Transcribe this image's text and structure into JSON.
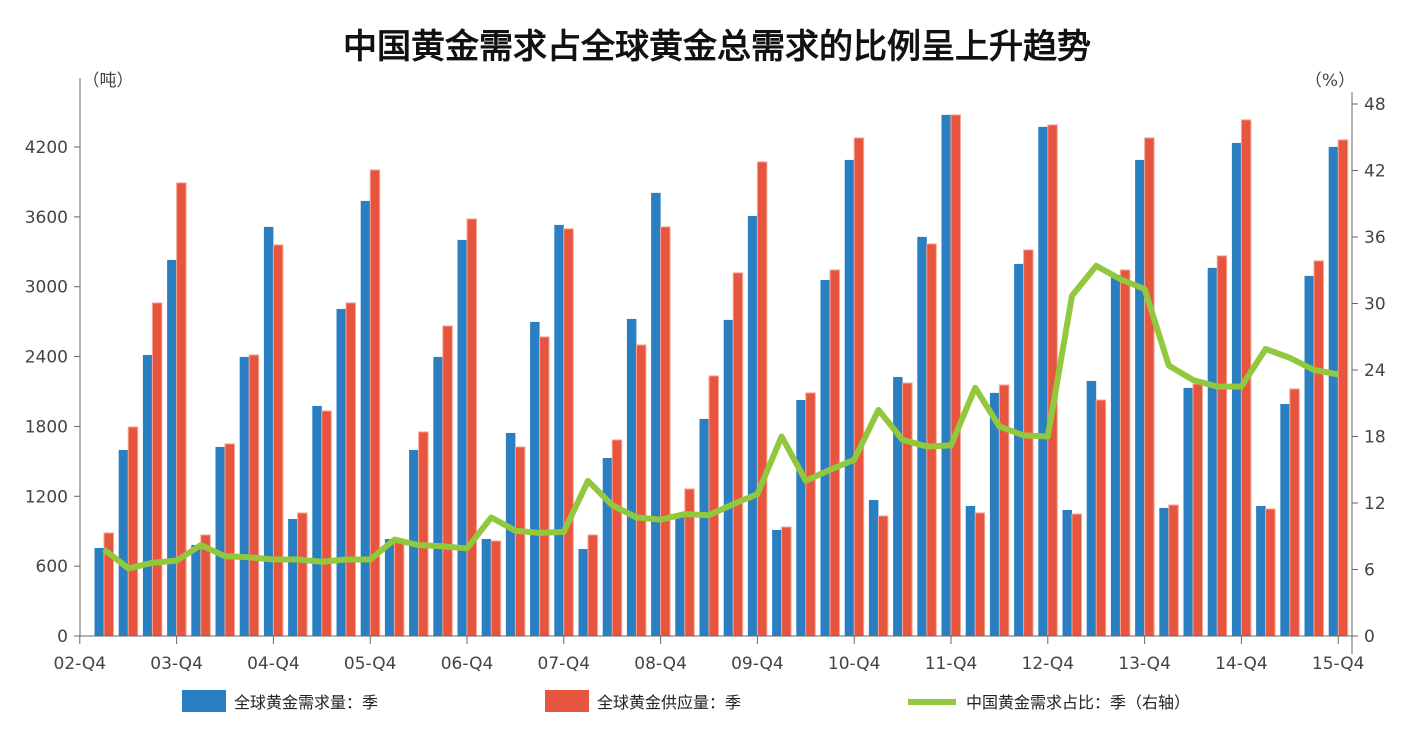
{
  "chart_data": {
    "type": "bar+line",
    "title": "中国黄金需求占全球黄金总需求的比例呈上升趋势",
    "ylabel_left": "（吨）",
    "ylabel_right": "（%）",
    "ylim_left": [
      0,
      4800
    ],
    "yticks_left": [
      "0",
      "600",
      "1200",
      "1800",
      "2400",
      "3000",
      "3600",
      "4200"
    ],
    "ylim_right": [
      0,
      48
    ],
    "yticks_right": [
      "0",
      "6",
      "12",
      "18",
      "24",
      "30",
      "36",
      "42",
      "48"
    ],
    "xticks": [
      "02-Q4",
      "03-Q4",
      "04-Q4",
      "05-Q4",
      "06-Q4",
      "07-Q4",
      "08-Q4",
      "09-Q4",
      "10-Q4",
      "11-Q4",
      "12-Q4",
      "13-Q4",
      "14-Q4",
      "15-Q4"
    ],
    "legend_position": "bottom",
    "grid": false,
    "series": [
      {
        "name": "全球黄金需求量：季",
        "type": "bar",
        "axis": "left",
        "color": "#2a7fc3",
        "values": [
          756,
          1598,
          2414,
          3230,
          782,
          1624,
          2397,
          3514,
          1005,
          1976,
          2809,
          3737,
          833,
          1598,
          2397,
          3402,
          833,
          1744,
          2698,
          3531,
          747,
          1529,
          2723,
          3806,
          1040,
          1864,
          2715,
          3608,
          911,
          2027,
          3058,
          4089,
          1168,
          2225,
          3428,
          4476,
          1117,
          2088,
          3196,
          4373,
          1082,
          2191,
          3100,
          4089,
          1100,
          2131,
          3162,
          4235,
          1117,
          1993,
          3093,
          4201
        ]
      },
      {
        "name": "全球黄金供应量：季",
        "type": "bar",
        "axis": "left",
        "color": "#e8553f",
        "values": [
          885,
          1795,
          2861,
          3892,
          868,
          1650,
          2414,
          3359,
          1057,
          1933,
          2861,
          4003,
          825,
          1753,
          2663,
          3582,
          816,
          1624,
          2569,
          3497,
          868,
          1684,
          2500,
          3514,
          1263,
          2234,
          3119,
          4072,
          936,
          2088,
          3144,
          4278,
          1031,
          2173,
          3368,
          4476,
          1057,
          2156,
          3316,
          4390,
          1048,
          2027,
          3144,
          4278,
          1125,
          2165,
          3265,
          4433,
          1091,
          2122,
          3222,
          4261
        ]
      },
      {
        "name": "中国黄金需求占比：季（右轴）",
        "type": "line",
        "axis": "right",
        "color": "#92c83e",
        "values": [
          7.8,
          6.1,
          6.6,
          6.8,
          8.2,
          7.2,
          7.1,
          6.9,
          6.9,
          6.7,
          6.9,
          6.9,
          8.7,
          8.2,
          8.1,
          7.9,
          10.7,
          9.5,
          9.3,
          9.4,
          14.0,
          11.8,
          10.7,
          10.5,
          11.0,
          10.9,
          11.9,
          12.8,
          18.0,
          14.0,
          15.0,
          15.9,
          20.4,
          17.7,
          17.1,
          17.2,
          22.4,
          18.9,
          18.1,
          18.0,
          30.7,
          33.4,
          32.2,
          31.3,
          24.4,
          23.1,
          22.5,
          22.5,
          25.9,
          25.1,
          24.0,
          23.6
        ]
      }
    ]
  }
}
